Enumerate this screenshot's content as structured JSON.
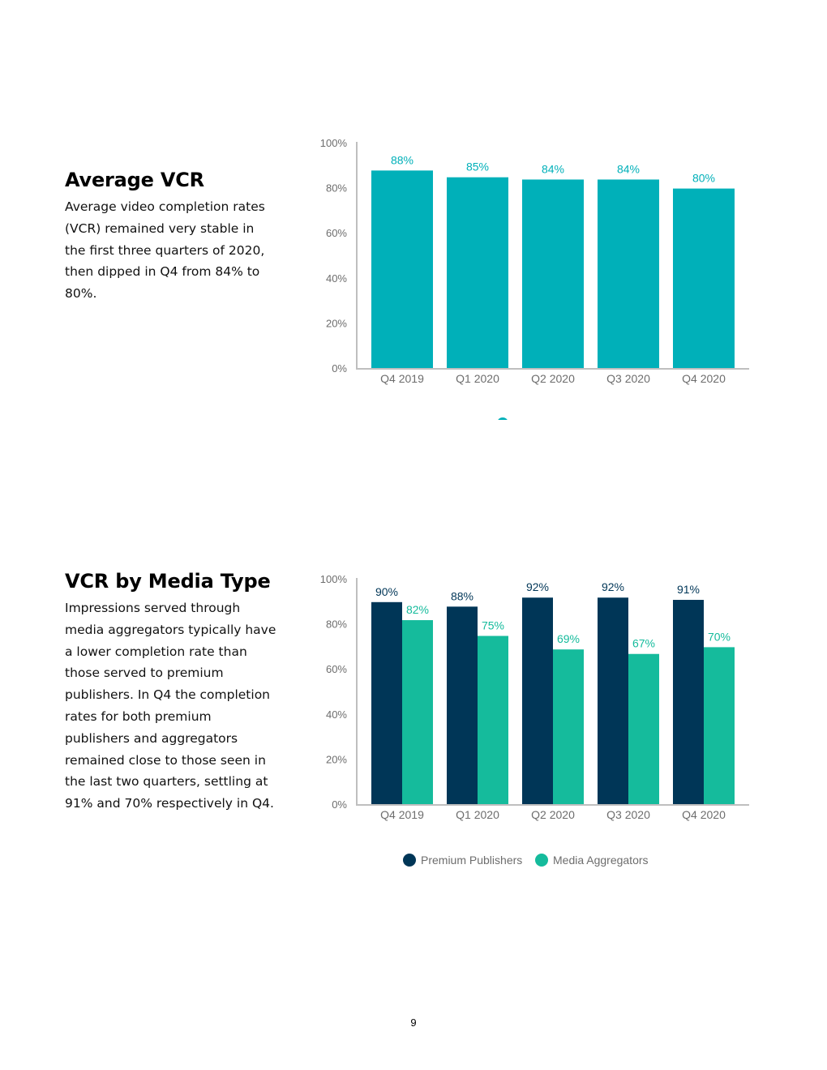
{
  "colors": {
    "teal": "#00b0b9",
    "navy": "#003657",
    "green": "#15bb9c",
    "axis": "#bfbfbf",
    "tick_text": "#6d6d6d"
  },
  "sections": [
    {
      "title": "Average VCR",
      "body": "Average video completion rates (VCR) remained very stable in the first three quarters of 2020, then dipped in Q4 from 84% to 80%."
    },
    {
      "title": "VCR by Media Type",
      "body": "Impressions served through media aggregators typically have a lower completion rate than those served to premium publishers. In Q4 the completion rates for both premium publishers and aggregators remained close to those seen in the last two quarters, settling at 91% and 70% respectively in Q4."
    }
  ],
  "chart_data": [
    {
      "type": "bar",
      "categories": [
        "Q4 2019",
        "Q1 2020",
        "Q2 2020",
        "Q3 2020",
        "Q4 2020"
      ],
      "series": [
        {
          "values": [
            88,
            85,
            84,
            84,
            80
          ],
          "color": "#00b0b9"
        }
      ],
      "ylim": [
        0,
        100
      ],
      "yticks": [
        "0%",
        "20%",
        "40%",
        "60%",
        "80%",
        "100%"
      ],
      "value_suffix": "%",
      "legend": "bottom",
      "grid": false
    },
    {
      "type": "bar",
      "categories": [
        "Q4 2019",
        "Q1 2020",
        "Q2 2020",
        "Q3 2020",
        "Q4 2020"
      ],
      "series": [
        {
          "name": "Premium Publishers",
          "values": [
            90,
            88,
            92,
            92,
            91
          ],
          "color": "#003657"
        },
        {
          "name": "Media Aggregators",
          "values": [
            82,
            75,
            69,
            67,
            70
          ],
          "color": "#15bb9c"
        }
      ],
      "ylim": [
        0,
        100
      ],
      "yticks": [
        "0%",
        "20%",
        "40%",
        "60%",
        "80%",
        "100%"
      ],
      "value_suffix": "%",
      "legend": "bottom",
      "grid": false
    }
  ],
  "page_number": "9"
}
